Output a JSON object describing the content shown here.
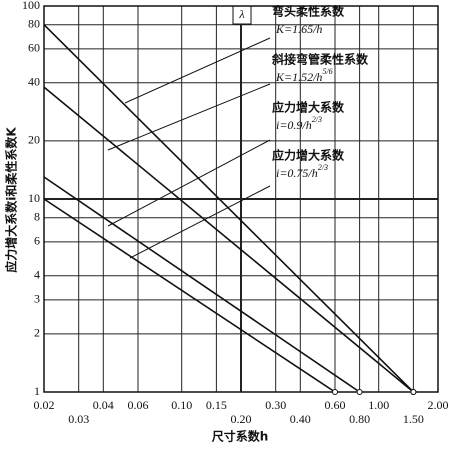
{
  "chart_data": {
    "type": "line",
    "x_label": "尺寸系数h",
    "y_label": "应力增大系数i和柔性系数K",
    "corner_label": "λ",
    "log_x": true,
    "log_y": true,
    "grid": true,
    "xlim": [
      0.02,
      2.0
    ],
    "ylim": [
      1,
      100
    ],
    "xticks": [
      {
        "value": 0.02,
        "label": "0.02"
      },
      {
        "value": 0.03,
        "label": "0.03"
      },
      {
        "value": 0.04,
        "label": "0.04"
      },
      {
        "value": 0.06,
        "label": "0.06"
      },
      {
        "value": 0.1,
        "label": "0.10"
      },
      {
        "value": 0.15,
        "label": "0.15"
      },
      {
        "value": 0.2,
        "label": "0.20"
      },
      {
        "value": 0.3,
        "label": "0.30"
      },
      {
        "value": 0.4,
        "label": "0.40"
      },
      {
        "value": 0.6,
        "label": "0.60"
      },
      {
        "value": 0.8,
        "label": "0.80"
      },
      {
        "value": 1.0,
        "label": "1.00"
      },
      {
        "value": 1.5,
        "label": "1.50"
      },
      {
        "value": 2.0,
        "label": "2.00"
      }
    ],
    "yticks": [
      1,
      2,
      3,
      4,
      6,
      8,
      10,
      20,
      40,
      60,
      80,
      100
    ],
    "series": [
      {
        "name": "弯头柔性系数",
        "formula": "K=1.65/h",
        "color": "#111111",
        "x": [
          0.02,
          1.5
        ],
        "values": [
          80,
          1
        ]
      },
      {
        "name": "斜接弯管柔性系数",
        "formula": "K=1.52/h",
        "exponent": "5/6",
        "color": "#111111",
        "x": [
          0.02,
          1.5
        ],
        "values": [
          38,
          1
        ]
      },
      {
        "name": "应力增大系数",
        "formula": "i=0.9/h",
        "exponent": "2/3",
        "color": "#111111",
        "x": [
          0.02,
          0.8
        ],
        "values": [
          13,
          1
        ]
      },
      {
        "name": "应力增大系数",
        "formula": "i=0.75/h",
        "exponent": "2/3",
        "color": "#111111",
        "x": [
          0.02,
          0.6
        ],
        "values": [
          10,
          1
        ]
      }
    ]
  }
}
